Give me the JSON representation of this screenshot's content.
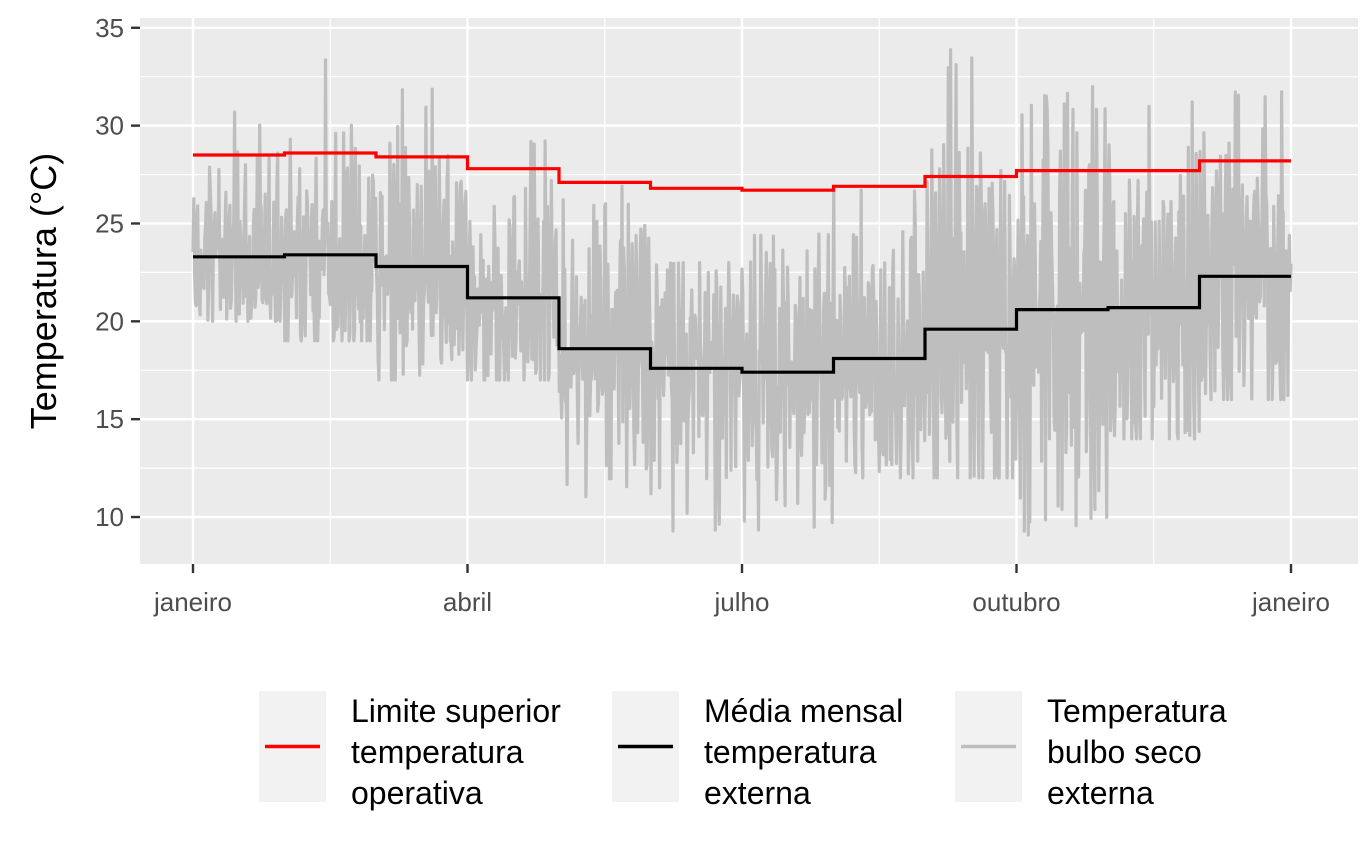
{
  "chart_data": {
    "type": "line",
    "ylabel": "Temperatura (°C)",
    "xlabel": "",
    "ylim": [
      7.6,
      35.5
    ],
    "yticks": [
      10,
      15,
      20,
      25,
      30,
      35
    ],
    "x_range": [
      "janeiro",
      "janeiro"
    ],
    "xticks": [
      {
        "label": "janeiro",
        "month": 0
      },
      {
        "label": "abril",
        "month": 3
      },
      {
        "label": "julho",
        "month": 6
      },
      {
        "label": "outubro",
        "month": 9
      },
      {
        "label": "janeiro",
        "month": 12
      }
    ],
    "grid": true,
    "legend_position": "bottom",
    "series": [
      {
        "name": "Limite superior temperatura operativa",
        "name_lines": [
          "Limite superior",
          "temperatura",
          "operativa"
        ],
        "color": "#ff0000",
        "kind": "step",
        "monthly": [
          28.5,
          28.6,
          28.4,
          27.8,
          27.1,
          26.8,
          26.7,
          26.9,
          27.4,
          27.7,
          27.7,
          28.2
        ]
      },
      {
        "name": "Média mensal temperatura externa",
        "name_lines": [
          "Média mensal",
          "temperatura",
          "externa"
        ],
        "color": "#000000",
        "kind": "step",
        "monthly": [
          23.3,
          23.4,
          22.8,
          21.2,
          18.6,
          17.6,
          17.4,
          18.1,
          19.6,
          20.6,
          20.7,
          22.3
        ]
      },
      {
        "name": "Temperatura bulbo seco externa",
        "name_lines": [
          "Temperatura",
          "bulbo seco",
          "externa"
        ],
        "color": "#bebebe",
        "kind": "hourly",
        "monthly_min": [
          20,
          19,
          17,
          17,
          11,
          9,
          9,
          12,
          12,
          9,
          14,
          16
        ],
        "monthly_max": [
          31,
          33.5,
          32,
          30,
          27,
          23,
          24.5,
          27,
          34,
          32,
          32,
          32
        ]
      }
    ]
  }
}
